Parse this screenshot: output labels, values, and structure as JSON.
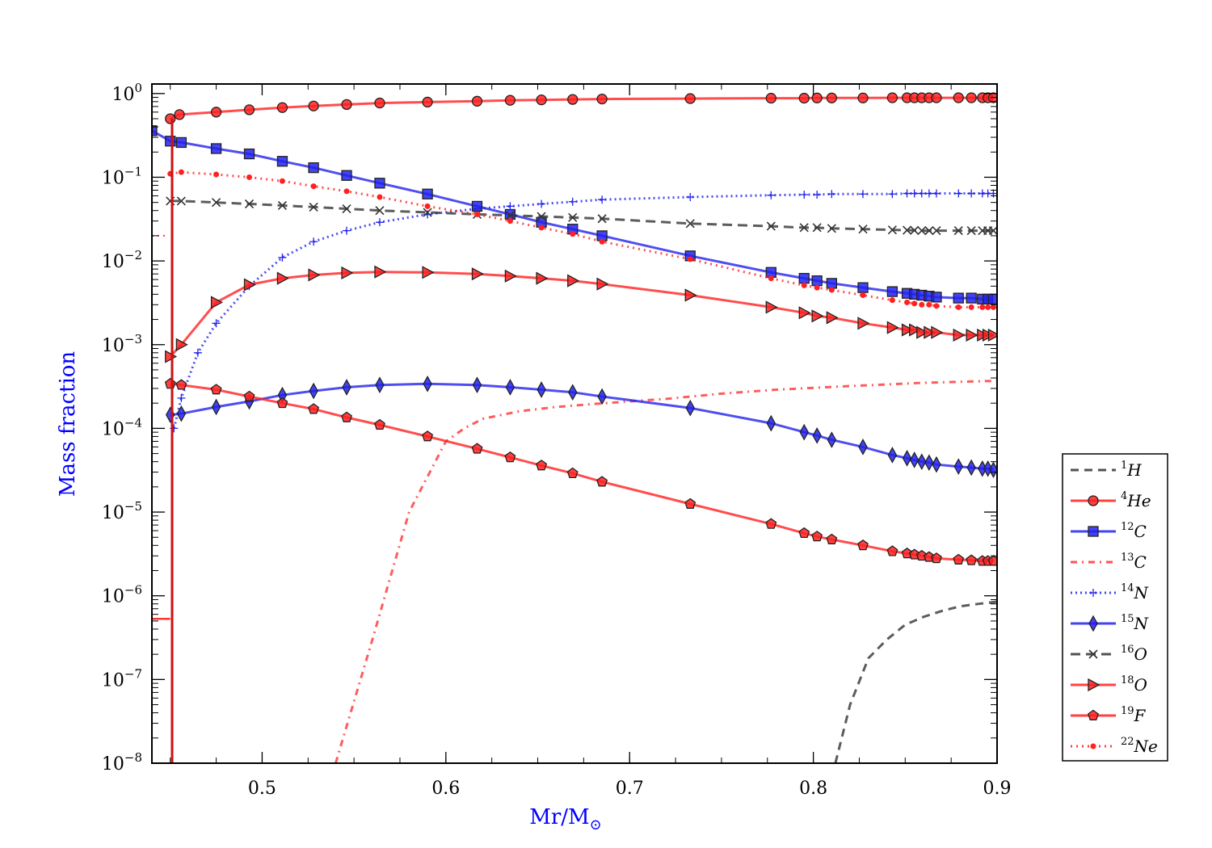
{
  "chart_data": {
    "type": "line",
    "xlabel": "Mr/M",
    "xlabel_subscript": "⊙",
    "ylabel": "Mass fraction",
    "xlim": [
      0.44,
      0.9
    ],
    "ylim": [
      1e-08,
      1.3
    ],
    "yscale": "log",
    "x_ticks": [
      0.5,
      0.6,
      0.7,
      0.8,
      0.9
    ],
    "x_tick_labels": [
      "0.5",
      "0.6",
      "0.7",
      "0.8",
      "0.9"
    ],
    "y_ticks": [
      1e-08,
      1e-07,
      1e-06,
      1e-05,
      0.0001,
      0.001,
      0.01,
      0.1,
      1
    ],
    "y_tick_labels": [
      {
        "base": "10",
        "exp": "−8"
      },
      {
        "base": "10",
        "exp": "−7"
      },
      {
        "base": "10",
        "exp": "−6"
      },
      {
        "base": "10",
        "exp": "−5"
      },
      {
        "base": "10",
        "exp": "−4"
      },
      {
        "base": "10",
        "exp": "−3"
      },
      {
        "base": "10",
        "exp": "−2"
      },
      {
        "base": "10",
        "exp": "−1"
      },
      {
        "base": "10",
        "exp": "0"
      }
    ],
    "grid": false,
    "legend_position": "outside-right",
    "series": [
      {
        "name": "H",
        "mass": "1",
        "color": "#333333",
        "dash": "10,7",
        "marker": "none",
        "x": [
          0.812,
          0.82,
          0.83,
          0.84,
          0.85,
          0.86,
          0.87,
          0.88,
          0.89,
          0.9
        ],
        "y": [
          1e-08,
          5e-08,
          1.8e-07,
          3e-07,
          4.5e-07,
          5.6e-07,
          6.6e-07,
          7.5e-07,
          8e-07,
          8.5e-07
        ]
      },
      {
        "name": "He",
        "mass": "4",
        "color": "#ff2020",
        "dash": "",
        "marker": "circle",
        "x": [
          0.45,
          0.455,
          0.475,
          0.493,
          0.511,
          0.528,
          0.546,
          0.564,
          0.59,
          0.617,
          0.635,
          0.652,
          0.669,
          0.685,
          0.733,
          0.777,
          0.795,
          0.802,
          0.81,
          0.827,
          0.843,
          0.851,
          0.855,
          0.859,
          0.863,
          0.867,
          0.879,
          0.886,
          0.892,
          0.895,
          0.898
        ],
        "y": [
          0.5,
          0.56,
          0.6,
          0.64,
          0.68,
          0.71,
          0.74,
          0.77,
          0.79,
          0.81,
          0.83,
          0.84,
          0.85,
          0.86,
          0.87,
          0.88,
          0.88,
          0.885,
          0.885,
          0.885,
          0.89,
          0.89,
          0.89,
          0.89,
          0.89,
          0.89,
          0.89,
          0.89,
          0.89,
          0.89,
          0.89
        ]
      },
      {
        "name": "C",
        "mass": "12",
        "color": "#2222ee",
        "dash": "",
        "marker": "square",
        "x": [
          0.44,
          0.45,
          0.456,
          0.475,
          0.493,
          0.511,
          0.528,
          0.546,
          0.564,
          0.59,
          0.617,
          0.635,
          0.652,
          0.669,
          0.685,
          0.733,
          0.777,
          0.795,
          0.802,
          0.81,
          0.827,
          0.843,
          0.851,
          0.855,
          0.859,
          0.863,
          0.867,
          0.879,
          0.886,
          0.892,
          0.895,
          0.898
        ],
        "y": [
          0.36,
          0.27,
          0.26,
          0.22,
          0.19,
          0.155,
          0.13,
          0.105,
          0.085,
          0.063,
          0.045,
          0.036,
          0.029,
          0.024,
          0.02,
          0.0115,
          0.0073,
          0.0062,
          0.0058,
          0.0054,
          0.0048,
          0.0043,
          0.0041,
          0.004,
          0.0039,
          0.0038,
          0.0037,
          0.0036,
          0.0036,
          0.0035,
          0.0035,
          0.0035
        ]
      },
      {
        "name": "C",
        "mass": "13",
        "color": "#ff3333",
        "dash": "8,6,2,6",
        "marker": "none",
        "x": [
          0.54,
          0.56,
          0.58,
          0.6,
          0.61,
          0.62,
          0.64,
          0.66,
          0.68,
          0.7,
          0.72,
          0.75,
          0.78,
          0.82,
          0.86,
          0.9
        ],
        "y": [
          1e-08,
          3e-07,
          1e-05,
          7e-05,
          0.0001,
          0.00013,
          0.00016,
          0.00018,
          0.000195,
          0.00021,
          0.000225,
          0.00026,
          0.00029,
          0.00032,
          0.00035,
          0.00037
        ]
      },
      {
        "name": "N",
        "mass": "14",
        "color": "#2222ee",
        "dash": "2,4",
        "marker": "plus",
        "x": [
          0.452,
          0.456,
          0.465,
          0.475,
          0.493,
          0.511,
          0.528,
          0.546,
          0.564,
          0.59,
          0.617,
          0.635,
          0.652,
          0.669,
          0.685,
          0.733,
          0.777,
          0.795,
          0.802,
          0.81,
          0.827,
          0.843,
          0.851,
          0.855,
          0.859,
          0.863,
          0.867,
          0.879,
          0.886,
          0.892,
          0.895,
          0.898
        ],
        "y": [
          0.0001,
          0.00023,
          0.0008,
          0.0018,
          0.005,
          0.011,
          0.017,
          0.023,
          0.029,
          0.036,
          0.042,
          0.045,
          0.048,
          0.051,
          0.054,
          0.058,
          0.061,
          0.062,
          0.062,
          0.063,
          0.063,
          0.063,
          0.064,
          0.064,
          0.064,
          0.064,
          0.064,
          0.064,
          0.064,
          0.064,
          0.064,
          0.064
        ]
      },
      {
        "name": "N",
        "mass": "15",
        "color": "#2222ee",
        "dash": "",
        "marker": "diamond",
        "x": [
          0.45,
          0.456,
          0.475,
          0.493,
          0.511,
          0.528,
          0.546,
          0.564,
          0.59,
          0.617,
          0.635,
          0.652,
          0.669,
          0.685,
          0.733,
          0.777,
          0.795,
          0.802,
          0.81,
          0.827,
          0.843,
          0.851,
          0.855,
          0.859,
          0.863,
          0.867,
          0.879,
          0.886,
          0.892,
          0.895,
          0.898
        ],
        "y": [
          0.000145,
          0.00015,
          0.00018,
          0.00021,
          0.00025,
          0.00028,
          0.00031,
          0.00033,
          0.00034,
          0.00033,
          0.00031,
          0.00029,
          0.00027,
          0.00024,
          0.000175,
          0.000115,
          9e-05,
          8.2e-05,
          7.3e-05,
          6e-05,
          4.8e-05,
          4.4e-05,
          4.2e-05,
          4e-05,
          3.9e-05,
          3.7e-05,
          3.5e-05,
          3.4e-05,
          3.3e-05,
          3.3e-05,
          3.2e-05
        ]
      },
      {
        "name": "O",
        "mass": "16",
        "color": "#333333",
        "dash": "12,7",
        "marker": "x",
        "x": [
          0.45,
          0.456,
          0.475,
          0.493,
          0.511,
          0.528,
          0.546,
          0.564,
          0.59,
          0.617,
          0.635,
          0.652,
          0.669,
          0.685,
          0.733,
          0.777,
          0.795,
          0.802,
          0.81,
          0.827,
          0.843,
          0.851,
          0.855,
          0.859,
          0.863,
          0.867,
          0.879,
          0.886,
          0.892,
          0.895,
          0.898
        ],
        "y": [
          0.052,
          0.052,
          0.05,
          0.048,
          0.046,
          0.044,
          0.042,
          0.04,
          0.038,
          0.036,
          0.035,
          0.034,
          0.033,
          0.032,
          0.028,
          0.026,
          0.025,
          0.025,
          0.0245,
          0.024,
          0.0235,
          0.0233,
          0.0232,
          0.023,
          0.023,
          0.023,
          0.023,
          0.023,
          0.023,
          0.023,
          0.023
        ]
      },
      {
        "name": "O",
        "mass": "18",
        "color": "#ff2020",
        "dash": "",
        "marker": "triangle-right",
        "x": [
          0.45,
          0.456,
          0.475,
          0.493,
          0.511,
          0.528,
          0.546,
          0.564,
          0.59,
          0.617,
          0.635,
          0.652,
          0.669,
          0.685,
          0.733,
          0.777,
          0.795,
          0.802,
          0.81,
          0.827,
          0.843,
          0.851,
          0.855,
          0.859,
          0.863,
          0.867,
          0.879,
          0.886,
          0.892,
          0.895,
          0.898
        ],
        "y": [
          0.00072,
          0.001,
          0.0032,
          0.0052,
          0.0062,
          0.0068,
          0.0072,
          0.0074,
          0.0073,
          0.007,
          0.0066,
          0.0062,
          0.0058,
          0.0053,
          0.0039,
          0.0028,
          0.0024,
          0.0022,
          0.0021,
          0.0018,
          0.0016,
          0.0015,
          0.0015,
          0.0014,
          0.0014,
          0.0014,
          0.0013,
          0.0013,
          0.0013,
          0.0013,
          0.0013
        ]
      },
      {
        "name": "F",
        "mass": "19",
        "color": "#ff2020",
        "dash": "",
        "marker": "pentagon",
        "x": [
          0.45,
          0.456,
          0.475,
          0.493,
          0.511,
          0.528,
          0.546,
          0.564,
          0.59,
          0.617,
          0.635,
          0.652,
          0.669,
          0.685,
          0.733,
          0.777,
          0.795,
          0.802,
          0.81,
          0.827,
          0.843,
          0.851,
          0.855,
          0.859,
          0.863,
          0.867,
          0.879,
          0.886,
          0.892,
          0.895,
          0.898
        ],
        "y": [
          0.00034,
          0.00033,
          0.00029,
          0.00024,
          0.0002,
          0.00017,
          0.000135,
          0.00011,
          8e-05,
          5.7e-05,
          4.5e-05,
          3.6e-05,
          2.9e-05,
          2.3e-05,
          1.25e-05,
          7.2e-06,
          5.6e-06,
          5.1e-06,
          4.7e-06,
          4e-06,
          3.4e-06,
          3.2e-06,
          3.1e-06,
          3e-06,
          2.9e-06,
          2.8e-06,
          2.7e-06,
          2.65e-06,
          2.6e-06,
          2.6e-06,
          2.6e-06
        ]
      },
      {
        "name": "Ne",
        "mass": "22",
        "color": "#ff2020",
        "dash": "2,5",
        "marker": "dot",
        "x": [
          0.45,
          0.456,
          0.475,
          0.493,
          0.511,
          0.528,
          0.546,
          0.564,
          0.59,
          0.617,
          0.635,
          0.652,
          0.669,
          0.685,
          0.733,
          0.777,
          0.795,
          0.802,
          0.81,
          0.827,
          0.843,
          0.851,
          0.855,
          0.859,
          0.863,
          0.867,
          0.879,
          0.886,
          0.892,
          0.895,
          0.898
        ],
        "y": [
          0.11,
          0.115,
          0.108,
          0.1,
          0.09,
          0.078,
          0.068,
          0.058,
          0.045,
          0.036,
          0.03,
          0.025,
          0.021,
          0.017,
          0.0105,
          0.0062,
          0.0051,
          0.0048,
          0.0045,
          0.0039,
          0.0034,
          0.0032,
          0.0031,
          0.003,
          0.003,
          0.0029,
          0.0028,
          0.0028,
          0.0028,
          0.0028,
          0.0028
        ]
      }
    ]
  }
}
